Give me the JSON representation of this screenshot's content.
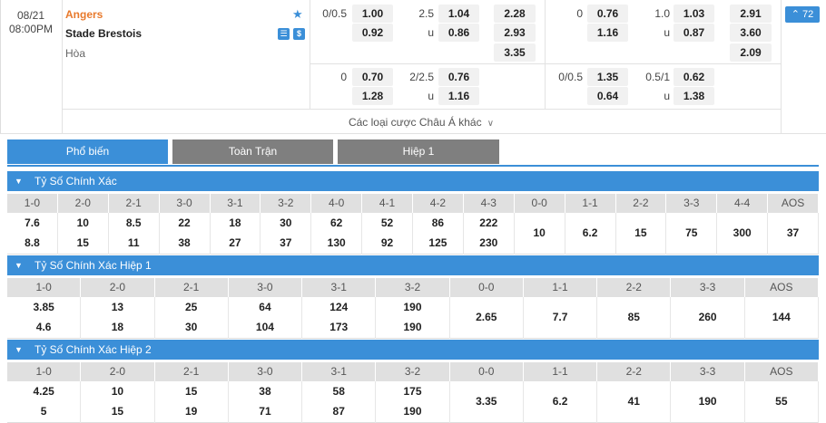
{
  "match": {
    "date": "08/21",
    "time": "08:00PM",
    "home": "Angers",
    "away": "Stade Brestois",
    "draw": "Hòa",
    "more_count": "72",
    "more_bets_label": "Các loại cược Châu Á khác",
    "ft_main": {
      "ah_line": "0/0.5",
      "ah_home": "1.00",
      "ah_away": "0.92",
      "ou_line": "2.5",
      "ou_over": "1.04",
      "ou_under_label": "u",
      "ou_under": "0.86",
      "x12_home": "2.28",
      "x12_away": "2.93",
      "x12_draw": "3.35"
    },
    "ft_alt": {
      "ah_line": "0",
      "ah_home": "0.70",
      "ah_away": "1.28",
      "ou_line": "2/2.5",
      "ou_over": "0.76",
      "ou_under_label": "u",
      "ou_under": "1.16"
    },
    "h1_main": {
      "ah_line": "0",
      "ah_home": "0.76",
      "ah_away": "1.16",
      "ou_line": "1.0",
      "ou_over": "1.03",
      "ou_under_label": "u",
      "ou_under": "0.87",
      "x12_home": "2.91",
      "x12_away": "3.60",
      "x12_draw": "2.09"
    },
    "h1_alt": {
      "ah_line": "0/0.5",
      "ah_home": "1.35",
      "ah_away": "0.64",
      "ou_line": "0.5/1",
      "ou_over": "0.62",
      "ou_under_label": "u",
      "ou_under": "1.38"
    }
  },
  "tabs": [
    {
      "label": "Phổ biến",
      "active": true
    },
    {
      "label": "Toàn Trận",
      "active": false
    },
    {
      "label": "Hiệp 1",
      "active": false
    }
  ],
  "sections": [
    {
      "title": "Tỷ Số Chính Xác",
      "headers": [
        "1-0",
        "2-0",
        "2-1",
        "3-0",
        "3-1",
        "3-2",
        "4-0",
        "4-1",
        "4-2",
        "4-3",
        "0-0",
        "1-1",
        "2-2",
        "3-3",
        "4-4",
        "AOS"
      ],
      "home_odds": [
        "7.6",
        "10",
        "8.5",
        "22",
        "18",
        "30",
        "62",
        "52",
        "86",
        "222"
      ],
      "away_odds": [
        "8.8",
        "15",
        "11",
        "38",
        "27",
        "37",
        "130",
        "92",
        "125",
        "230"
      ],
      "draw_odds": [
        "10",
        "6.2",
        "15",
        "75",
        "300",
        "37"
      ]
    },
    {
      "title": "Tỷ Số Chính Xác Hiệp 1",
      "headers": [
        "1-0",
        "2-0",
        "2-1",
        "3-0",
        "3-1",
        "3-2",
        "0-0",
        "1-1",
        "2-2",
        "3-3",
        "AOS"
      ],
      "home_odds": [
        "3.85",
        "13",
        "25",
        "64",
        "124",
        "190"
      ],
      "away_odds": [
        "4.6",
        "18",
        "30",
        "104",
        "173",
        "190"
      ],
      "draw_odds": [
        "2.65",
        "7.7",
        "85",
        "260",
        "144"
      ]
    },
    {
      "title": "Tỷ Số Chính Xác Hiệp 2",
      "headers": [
        "1-0",
        "2-0",
        "2-1",
        "3-0",
        "3-1",
        "3-2",
        "0-0",
        "1-1",
        "2-2",
        "3-3",
        "AOS"
      ],
      "home_odds": [
        "4.25",
        "10",
        "15",
        "38",
        "58",
        "175"
      ],
      "away_odds": [
        "5",
        "15",
        "19",
        "71",
        "87",
        "190"
      ],
      "draw_odds": [
        "3.35",
        "6.2",
        "41",
        "190",
        "55"
      ]
    }
  ]
}
